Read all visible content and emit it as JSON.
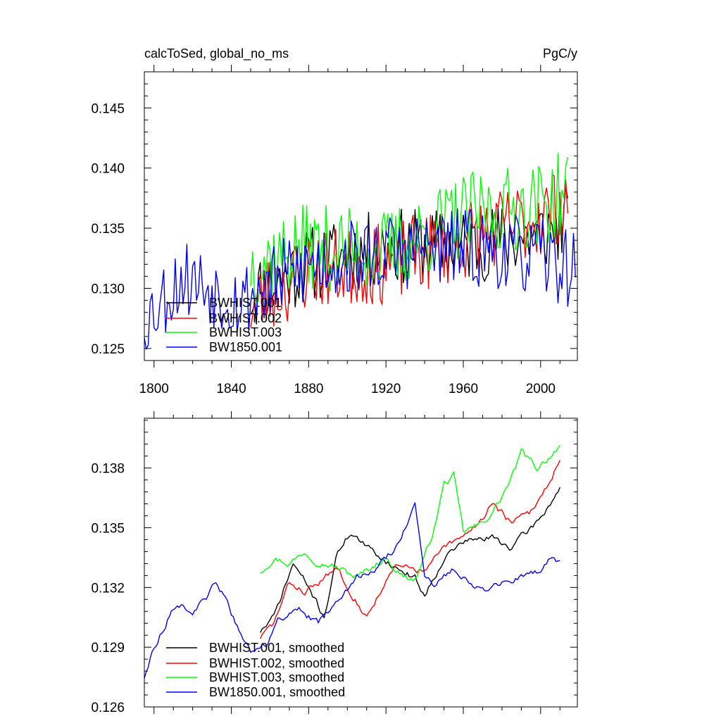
{
  "figure": {
    "background": "#ffffff"
  },
  "chart_data": [
    {
      "type": "line",
      "title_left": "calcToSed, global_no_ms",
      "title_right": "PgC/y",
      "xlim": [
        1795,
        2019
      ],
      "ylim": [
        0.124,
        0.148
      ],
      "x_ticks": [
        1800,
        1840,
        1880,
        1920,
        1960,
        2000
      ],
      "y_ticks": [
        0.125,
        0.13,
        0.135,
        0.14,
        0.145
      ],
      "y_tick_labels": [
        "0.125",
        "0.130",
        "0.135",
        "0.140",
        "0.145"
      ],
      "legend_position": "bottom-left",
      "series": [
        {
          "name": "BWHIST.001",
          "color": "#000000",
          "start_year": 1850,
          "base": [
            [
              1850,
              0.1295
            ],
            [
              1880,
              0.132
            ],
            [
              1920,
              0.1335
            ],
            [
              1960,
              0.1335
            ],
            [
              2000,
              0.1345
            ],
            [
              2014,
              0.1355
            ]
          ],
          "noise": 0.0032,
          "seed": 11
        },
        {
          "name": "BWHIST.002",
          "color": "#ff0000",
          "start_year": 1850,
          "base": [
            [
              1850,
              0.1285
            ],
            [
              1880,
              0.1315
            ],
            [
              1920,
              0.132
            ],
            [
              1960,
              0.134
            ],
            [
              2000,
              0.136
            ],
            [
              2014,
              0.1375
            ]
          ],
          "noise": 0.0034,
          "seed": 23
        },
        {
          "name": "BWHIST.003",
          "color": "#00ff00",
          "start_year": 1850,
          "base": [
            [
              1850,
              0.132
            ],
            [
              1880,
              0.1335
            ],
            [
              1920,
              0.133
            ],
            [
              1960,
              0.136
            ],
            [
              2000,
              0.137
            ],
            [
              2014,
              0.138
            ]
          ],
          "noise": 0.0036,
          "seed": 37
        },
        {
          "name": "BW1850.001",
          "color": "#0000ff",
          "start_year": 1795,
          "base": [
            [
              1795,
              0.1275
            ],
            [
              1815,
              0.131
            ],
            [
              1845,
              0.129
            ],
            [
              1880,
              0.132
            ],
            [
              1920,
              0.133
            ],
            [
              1960,
              0.1335
            ],
            [
              2000,
              0.1325
            ],
            [
              2018,
              0.1315
            ]
          ],
          "noise": 0.0033,
          "seed": 53
        }
      ]
    },
    {
      "type": "line",
      "title_left": "",
      "title_right": "",
      "xlim": [
        1795,
        2019
      ],
      "ylim": [
        0.126,
        0.1405
      ],
      "x_ticks": [
        1800,
        1840,
        1880,
        1920,
        1960,
        2000
      ],
      "y_ticks": [
        0.126,
        0.129,
        0.132,
        0.135,
        0.138
      ],
      "y_tick_labels": [
        "0.126",
        "0.129",
        "0.132",
        "0.135",
        "0.138"
      ],
      "legend_position": "bottom-left",
      "series": [
        {
          "name": "BWHIST.001, smoothed",
          "color": "#000000",
          "start_year": 1855,
          "base": [
            [
              1855,
              0.1298
            ],
            [
              1862,
              0.1305
            ],
            [
              1872,
              0.1332
            ],
            [
              1880,
              0.132
            ],
            [
              1888,
              0.1305
            ],
            [
              1895,
              0.1338
            ],
            [
              1902,
              0.1348
            ],
            [
              1910,
              0.134
            ],
            [
              1918,
              0.1335
            ],
            [
              1925,
              0.133
            ],
            [
              1935,
              0.1325
            ],
            [
              1940,
              0.1316
            ],
            [
              1950,
              0.1335
            ],
            [
              1960,
              0.1343
            ],
            [
              1975,
              0.1345
            ],
            [
              1985,
              0.134
            ],
            [
              1990,
              0.1345
            ],
            [
              2000,
              0.1355
            ],
            [
              2010,
              0.137
            ]
          ],
          "noise": 0.00035,
          "seed": 71
        },
        {
          "name": "BWHIST.002, smoothed",
          "color": "#ff0000",
          "start_year": 1855,
          "base": [
            [
              1855,
              0.1295
            ],
            [
              1862,
              0.1302
            ],
            [
              1870,
              0.1322
            ],
            [
              1878,
              0.1318
            ],
            [
              1885,
              0.1322
            ],
            [
              1895,
              0.133
            ],
            [
              1902,
              0.1318
            ],
            [
              1910,
              0.1305
            ],
            [
              1918,
              0.132
            ],
            [
              1925,
              0.133
            ],
            [
              1932,
              0.133
            ],
            [
              1940,
              0.1328
            ],
            [
              1950,
              0.134
            ],
            [
              1960,
              0.1345
            ],
            [
              1970,
              0.1355
            ],
            [
              1975,
              0.1363
            ],
            [
              1985,
              0.1352
            ],
            [
              1995,
              0.1358
            ],
            [
              2005,
              0.1374
            ],
            [
              2010,
              0.1385
            ]
          ],
          "noise": 0.00035,
          "seed": 83
        },
        {
          "name": "BWHIST.003, smoothed",
          "color": "#00ff00",
          "start_year": 1855,
          "base": [
            [
              1855,
              0.1328
            ],
            [
              1862,
              0.1335
            ],
            [
              1870,
              0.1332
            ],
            [
              1878,
              0.1338
            ],
            [
              1885,
              0.1333
            ],
            [
              1895,
              0.133
            ],
            [
              1905,
              0.1325
            ],
            [
              1912,
              0.133
            ],
            [
              1920,
              0.1335
            ],
            [
              1928,
              0.1326
            ],
            [
              1935,
              0.1324
            ],
            [
              1940,
              0.1335
            ],
            [
              1945,
              0.135
            ],
            [
              1950,
              0.1372
            ],
            [
              1955,
              0.1376
            ],
            [
              1960,
              0.1348
            ],
            [
              1970,
              0.1352
            ],
            [
              1978,
              0.1362
            ],
            [
              1985,
              0.1375
            ],
            [
              1990,
              0.1388
            ],
            [
              1998,
              0.138
            ],
            [
              2005,
              0.1386
            ],
            [
              2010,
              0.1392
            ]
          ],
          "noise": 0.00035,
          "seed": 97
        },
        {
          "name": "BW1850.001, smoothed",
          "color": "#0000ff",
          "start_year": 1795,
          "base": [
            [
              1795,
              0.1275
            ],
            [
              1800,
              0.129
            ],
            [
              1805,
              0.13
            ],
            [
              1812,
              0.1313
            ],
            [
              1820,
              0.1308
            ],
            [
              1828,
              0.1315
            ],
            [
              1832,
              0.1323
            ],
            [
              1838,
              0.1312
            ],
            [
              1845,
              0.1295
            ],
            [
              1850,
              0.1288
            ],
            [
              1858,
              0.1292
            ],
            [
              1865,
              0.1305
            ],
            [
              1875,
              0.1308
            ],
            [
              1885,
              0.1302
            ],
            [
              1895,
              0.1315
            ],
            [
              1905,
              0.1325
            ],
            [
              1912,
              0.1327
            ],
            [
              1920,
              0.1335
            ],
            [
              1925,
              0.134
            ],
            [
              1932,
              0.1355
            ],
            [
              1935,
              0.1362
            ],
            [
              1940,
              0.1325
            ],
            [
              1945,
              0.132
            ],
            [
              1955,
              0.133
            ],
            [
              1965,
              0.1322
            ],
            [
              1972,
              0.1318
            ],
            [
              1980,
              0.1322
            ],
            [
              1990,
              0.1325
            ],
            [
              2000,
              0.1328
            ],
            [
              2005,
              0.1335
            ],
            [
              2010,
              0.1332
            ]
          ],
          "noise": 0.00035,
          "seed": 113
        }
      ]
    }
  ]
}
